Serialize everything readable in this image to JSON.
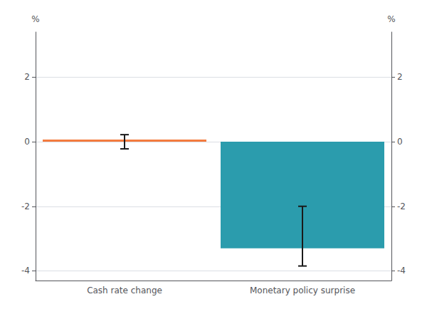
{
  "chart_data": {
    "type": "bar",
    "categories": [
      "Cash rate change",
      "Monetary policy surprise"
    ],
    "values": [
      0.0,
      -3.3
    ],
    "colors": [
      "#F47B3F",
      "#2B9CAD"
    ],
    "error_bars": {
      "color": "#1A1A1A",
      "values": [
        {
          "center": 0.0,
          "minus": 0.22,
          "plus": 0.22
        },
        {
          "center": -2.15,
          "minus": 1.7,
          "plus": 0.15
        }
      ]
    },
    "ylabel": "%",
    "y2label": "%",
    "ylim": [
      -4.3,
      3.4
    ],
    "yticks": [
      -4,
      -2,
      0,
      2
    ],
    "y2lim": [
      -4.3,
      3.4
    ],
    "y2ticks": [
      -4,
      -2,
      0,
      2
    ],
    "grid": true
  }
}
